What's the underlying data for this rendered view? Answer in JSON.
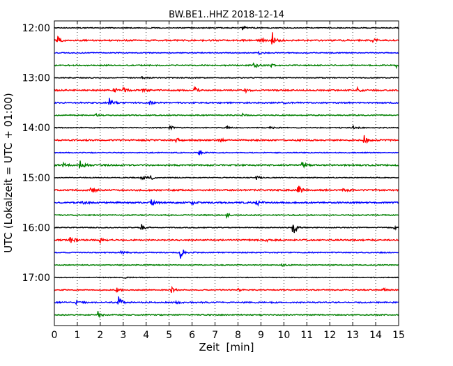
{
  "chart_data": {
    "type": "line",
    "title": "BW.BE1..HHZ 2018-12-14",
    "xlabel": "Zeit  [min]",
    "ylabel": "UTC (Lokalzeit = UTC + 01:00)",
    "xlim": [
      0,
      15
    ],
    "x_ticks": [
      0,
      1,
      2,
      3,
      4,
      5,
      6,
      7,
      8,
      9,
      10,
      11,
      12,
      13,
      14,
      15
    ],
    "x_tick_labels": [
      "0",
      "1",
      "2",
      "3",
      "4",
      "5",
      "6",
      "7",
      "8",
      "9",
      "10",
      "11",
      "12",
      "13",
      "14",
      "15"
    ],
    "y_tick_labels": [
      "12:00",
      "13:00",
      "14:00",
      "15:00",
      "16:00",
      "17:00"
    ],
    "grid": "vertical dotted",
    "colors": [
      "#000000",
      "#ff0000",
      "#0000ff",
      "#008000"
    ],
    "traces": [
      {
        "start": "12:00",
        "noise": 0.6,
        "events": [
          [
            8.2,
            3
          ],
          [
            15.0,
            5
          ]
        ]
      },
      {
        "start": "12:15",
        "noise": 1.0,
        "events": [
          [
            0.15,
            5
          ],
          [
            9.5,
            11
          ],
          [
            9.0,
            3
          ],
          [
            13.9,
            3
          ]
        ]
      },
      {
        "start": "12:30",
        "noise": 0.6,
        "events": [
          [
            8.9,
            3
          ]
        ]
      },
      {
        "start": "12:45",
        "noise": 0.8,
        "events": [
          [
            8.7,
            6
          ],
          [
            9.4,
            3
          ],
          [
            14.9,
            3
          ]
        ]
      },
      {
        "start": "13:00",
        "noise": 0.6,
        "events": [
          [
            3.8,
            2
          ]
        ]
      },
      {
        "start": "13:15",
        "noise": 1.0,
        "events": [
          [
            2.6,
            4
          ],
          [
            3.0,
            4
          ],
          [
            3.8,
            3
          ],
          [
            6.1,
            4
          ],
          [
            8.3,
            3
          ],
          [
            13.2,
            3
          ]
        ]
      },
      {
        "start": "13:30",
        "noise": 0.9,
        "events": [
          [
            2.4,
            6
          ],
          [
            4.1,
            4
          ],
          [
            9.9,
            2
          ]
        ]
      },
      {
        "start": "13:45",
        "noise": 0.7,
        "events": [
          [
            1.8,
            2
          ],
          [
            8.2,
            2
          ]
        ]
      },
      {
        "start": "14:00",
        "noise": 0.6,
        "events": [
          [
            5.0,
            4
          ],
          [
            7.5,
            3
          ],
          [
            9.4,
            3
          ],
          [
            13.0,
            3
          ]
        ]
      },
      {
        "start": "14:15",
        "noise": 1.0,
        "events": [
          [
            5.3,
            3
          ],
          [
            7.2,
            3
          ],
          [
            13.5,
            7
          ]
        ]
      },
      {
        "start": "14:30",
        "noise": 0.6,
        "events": [
          [
            6.3,
            4
          ]
        ]
      },
      {
        "start": "14:45",
        "noise": 1.0,
        "events": [
          [
            1.1,
            9
          ],
          [
            10.8,
            4
          ],
          [
            0.4,
            3
          ]
        ]
      },
      {
        "start": "15:00",
        "noise": 0.6,
        "events": [
          [
            3.8,
            4
          ],
          [
            4.2,
            4
          ],
          [
            8.8,
            3
          ]
        ]
      },
      {
        "start": "15:15",
        "noise": 1.0,
        "events": [
          [
            1.6,
            4
          ],
          [
            10.6,
            9
          ],
          [
            12.6,
            4
          ]
        ]
      },
      {
        "start": "15:30",
        "noise": 1.0,
        "events": [
          [
            1.2,
            4
          ],
          [
            4.2,
            7
          ],
          [
            6.0,
            3
          ],
          [
            8.8,
            5
          ]
        ]
      },
      {
        "start": "15:45",
        "noise": 0.7,
        "events": [
          [
            7.5,
            3
          ]
        ]
      },
      {
        "start": "16:00",
        "noise": 0.6,
        "events": [
          [
            3.8,
            5
          ],
          [
            10.4,
            12
          ],
          [
            14.8,
            3
          ]
        ]
      },
      {
        "start": "16:15",
        "noise": 1.0,
        "events": [
          [
            0.7,
            6
          ],
          [
            2.0,
            3
          ],
          [
            9.2,
            2
          ]
        ]
      },
      {
        "start": "16:30",
        "noise": 0.7,
        "events": [
          [
            2.9,
            3
          ],
          [
            5.5,
            10
          ]
        ]
      },
      {
        "start": "16:45",
        "noise": 0.6,
        "events": [
          [
            9.9,
            2
          ]
        ]
      },
      {
        "start": "17:00",
        "noise": 0.5,
        "events": [
          [
            3.0,
            2
          ]
        ]
      },
      {
        "start": "17:15",
        "noise": 0.7,
        "events": [
          [
            2.7,
            4
          ],
          [
            5.1,
            4
          ],
          [
            8.0,
            2
          ],
          [
            14.3,
            3
          ]
        ]
      },
      {
        "start": "17:30",
        "noise": 0.9,
        "events": [
          [
            0.9,
            3
          ],
          [
            2.8,
            9
          ],
          [
            5.3,
            2
          ]
        ]
      },
      {
        "start": "17:45",
        "noise": 0.7,
        "events": [
          [
            1.9,
            5
          ]
        ]
      }
    ]
  }
}
